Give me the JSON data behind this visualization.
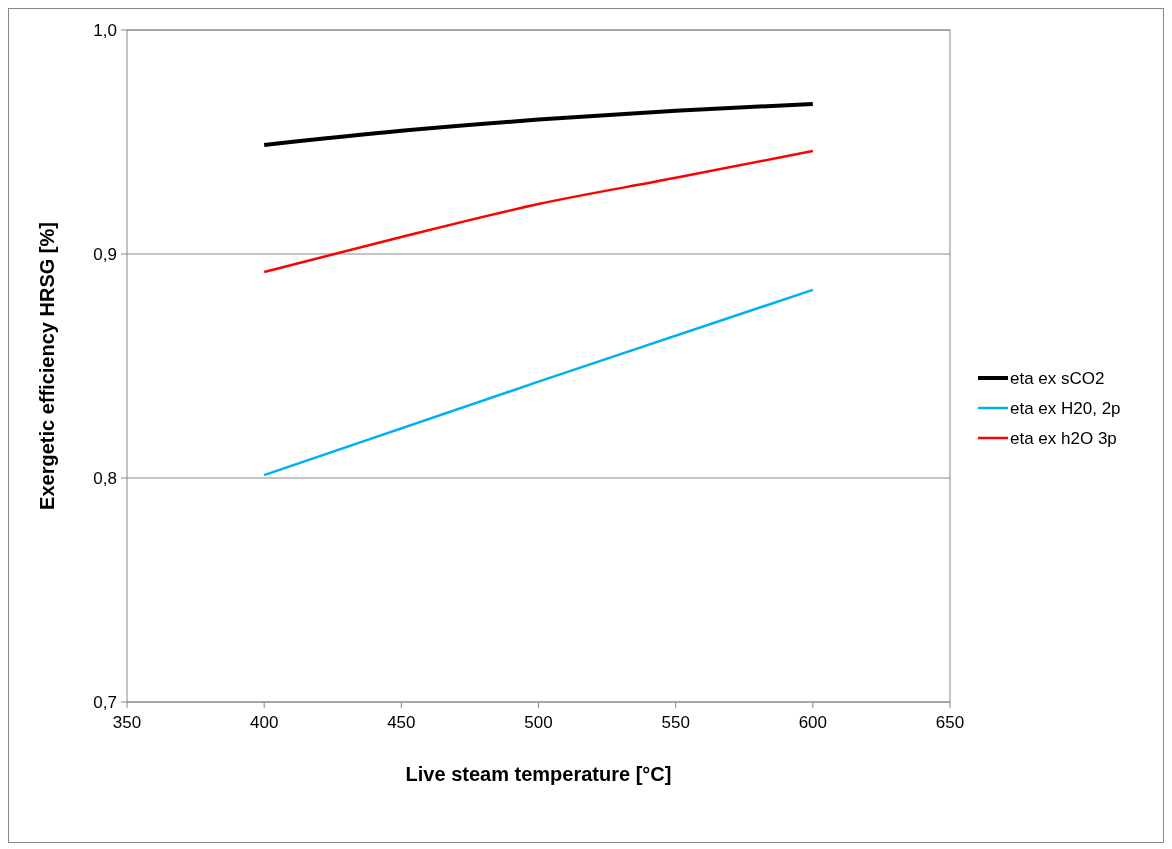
{
  "chart_data": {
    "type": "line",
    "xlabel": "Live steam temperature  [°C]",
    "ylabel": "Exergetic efficiency  HRSG [%]",
    "x": [
      400,
      450,
      500,
      550,
      600
    ],
    "series": [
      {
        "name": "eta ex sCO2",
        "color": "#000000",
        "values": [
          0.9487,
          0.955,
          0.96,
          0.964,
          0.967
        ]
      },
      {
        "name": "eta ex H20, 2p",
        "color": "#00b0f0",
        "values": [
          0.8013,
          null,
          0.843,
          null,
          0.884
        ]
      },
      {
        "name": "eta ex h2O 3p",
        "color": "#ff0000",
        "values": [
          0.892,
          0.9076,
          0.9223,
          0.934,
          0.946
        ]
      }
    ],
    "xlim": [
      350,
      650
    ],
    "xticks": [
      350,
      400,
      450,
      500,
      550,
      600,
      650
    ],
    "ylim": [
      0.7,
      1.0
    ],
    "yticks": [
      {
        "value": 0.7,
        "label": "0,7"
      },
      {
        "value": 0.8,
        "label": "0,8"
      },
      {
        "value": 0.9,
        "label": "0,9"
      },
      {
        "value": 1.0,
        "label": "1,0"
      }
    ],
    "grid": "y",
    "legend": "right",
    "marker": "none",
    "line_style": "solid"
  }
}
